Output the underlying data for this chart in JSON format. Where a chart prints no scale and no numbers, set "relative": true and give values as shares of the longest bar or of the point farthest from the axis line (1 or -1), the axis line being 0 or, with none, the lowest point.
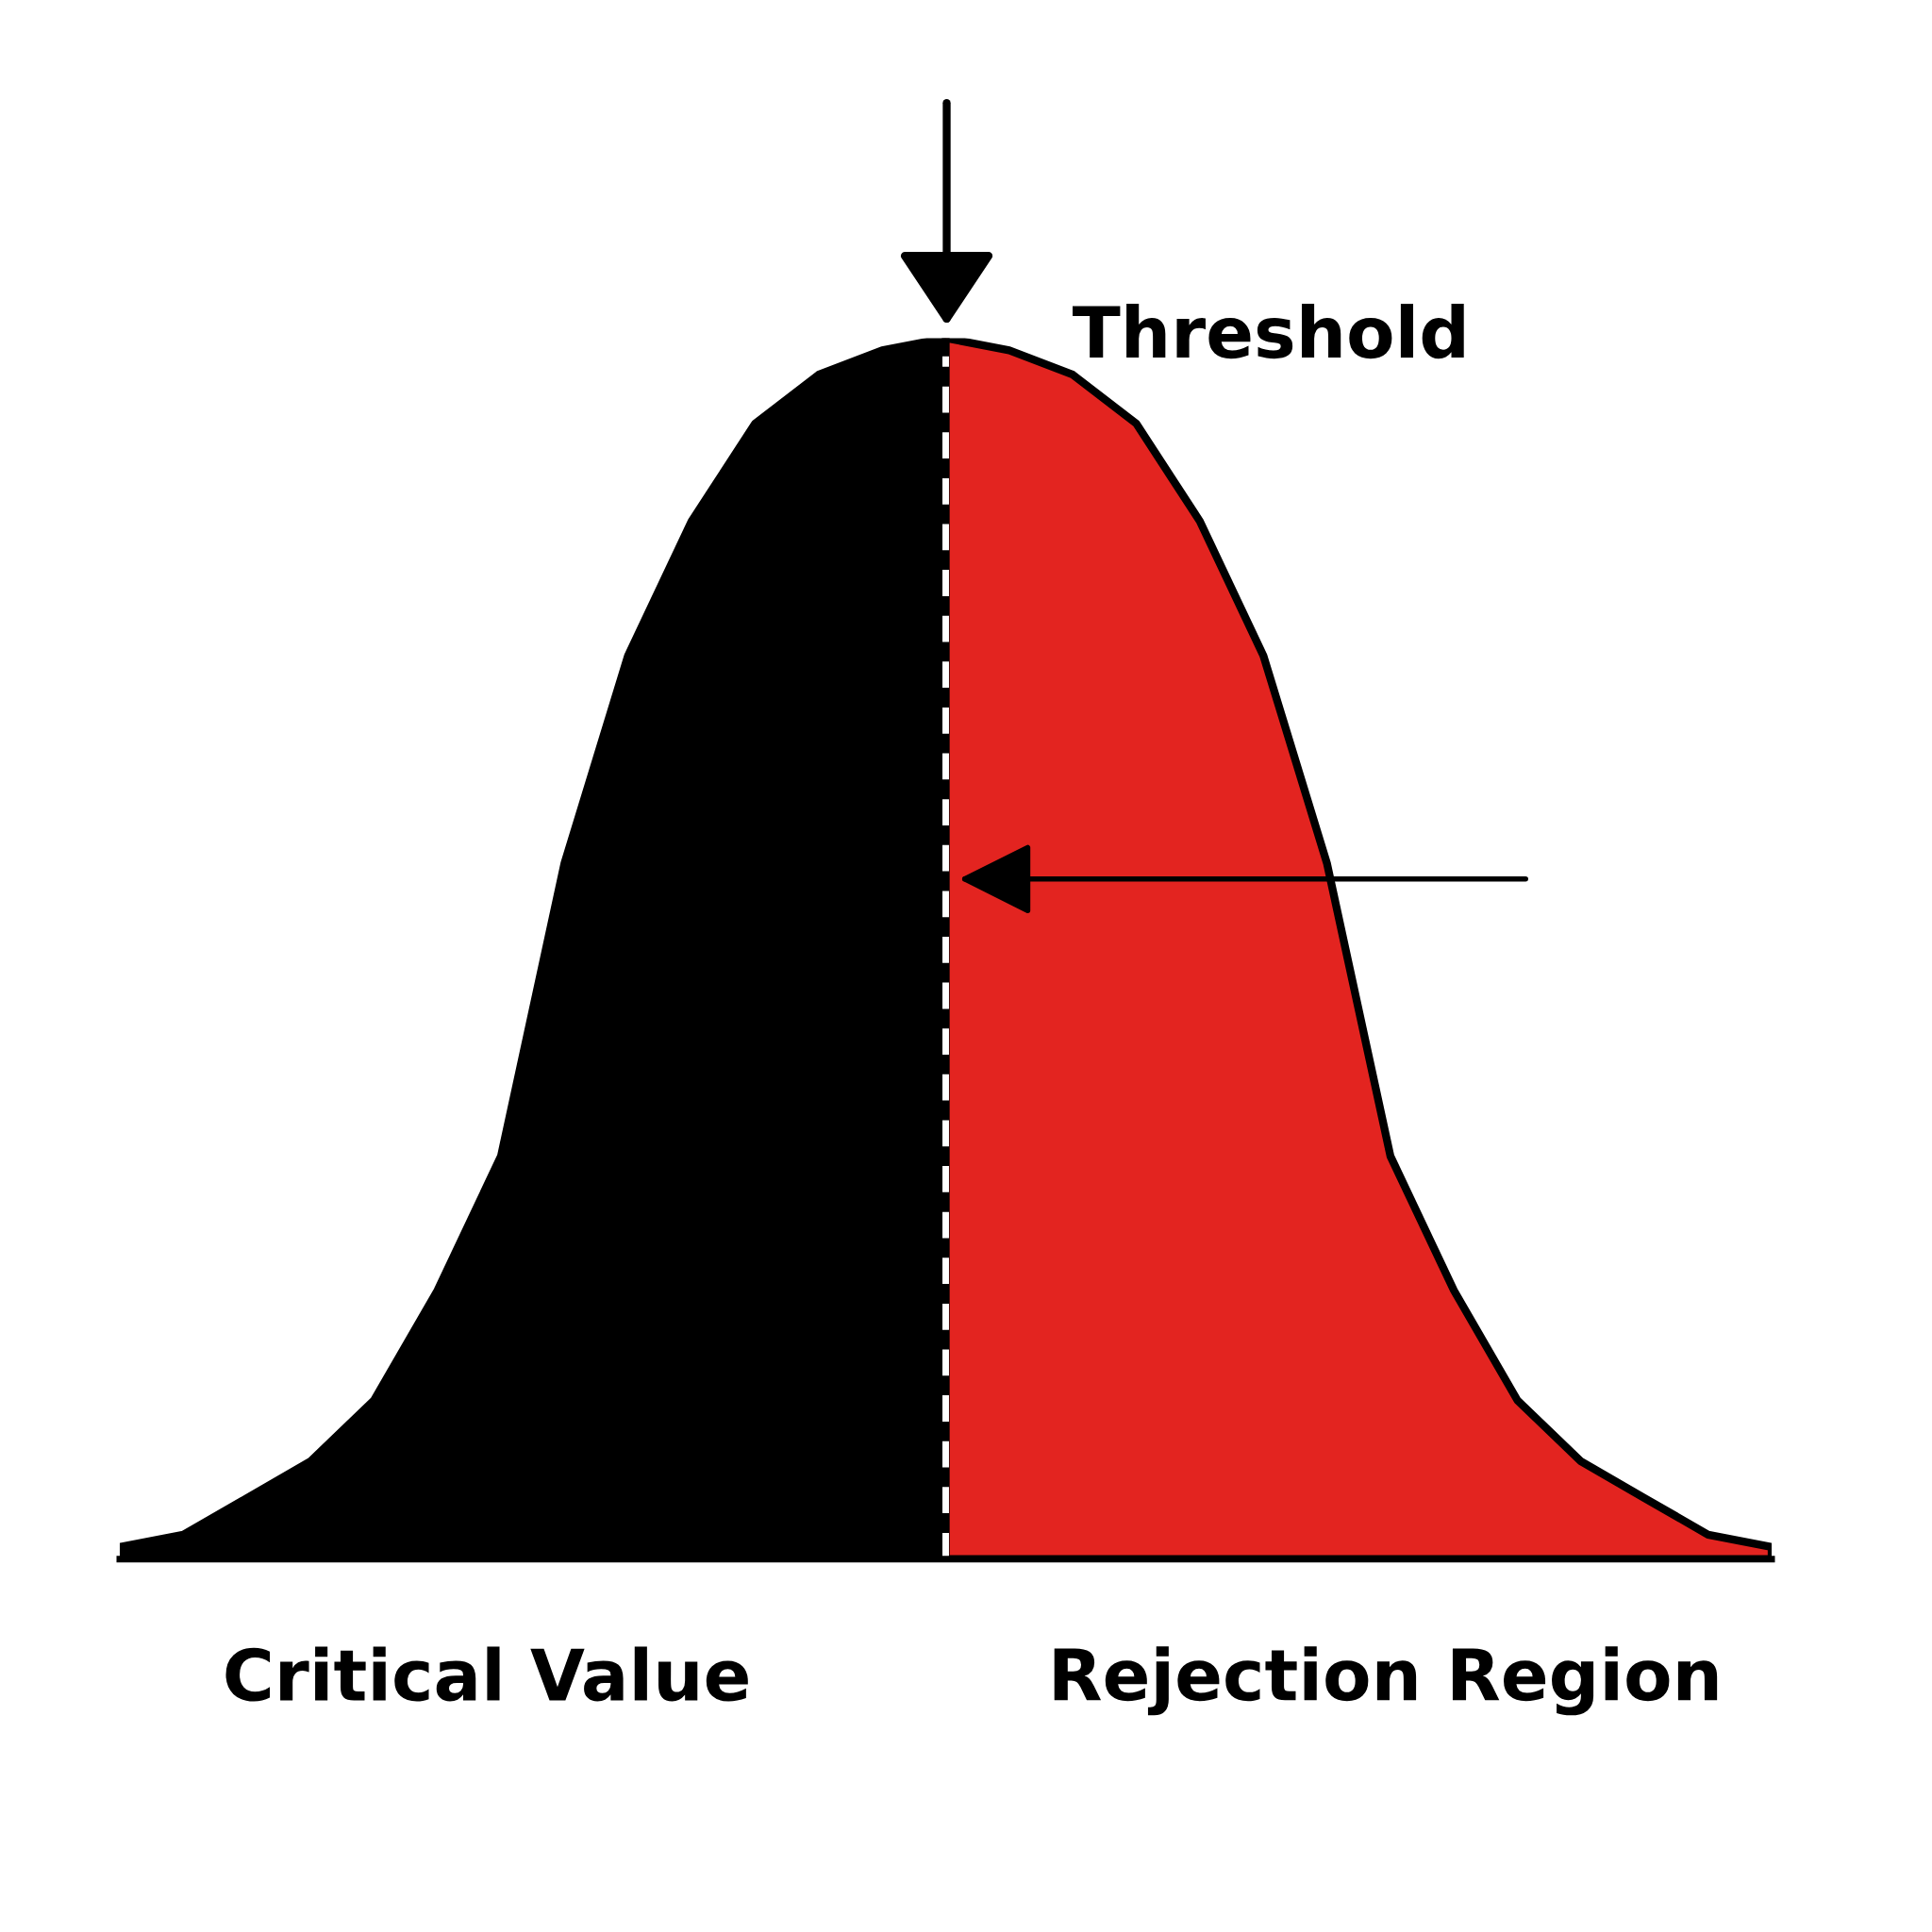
{
  "chart_data": {
    "type": "area",
    "relative": true,
    "categories": [
      null,
      null,
      null,
      null,
      null,
      null,
      null,
      null,
      null,
      null,
      null,
      null,
      null,
      null,
      null,
      null,
      null,
      null,
      null,
      null,
      null,
      null,
      null,
      null,
      null,
      null,
      null
    ],
    "series": [
      {
        "color": "#000000",
        "values": [
          0.01,
          0.02,
          0.05,
          0.08,
          0.13,
          0.22,
          0.33,
          0.57,
          0.74,
          0.85,
          0.93,
          0.97,
          0.99,
          1,
          null,
          null,
          null,
          null,
          null,
          null,
          null,
          null,
          null,
          null,
          null,
          null,
          null
        ]
      },
      {
        "color": "#e32420",
        "values": [
          null,
          null,
          null,
          null,
          null,
          null,
          null,
          null,
          null,
          null,
          null,
          null,
          null,
          1,
          0.99,
          0.97,
          0.93,
          0.85,
          0.74,
          0.57,
          0.33,
          0.22,
          0.13,
          0.08,
          0.05,
          0.02,
          0.01
        ]
      }
    ],
    "annotations": [
      "Threshold",
      "Critical Value",
      "Rejection Region"
    ],
    "grid": false,
    "legend": false
  }
}
